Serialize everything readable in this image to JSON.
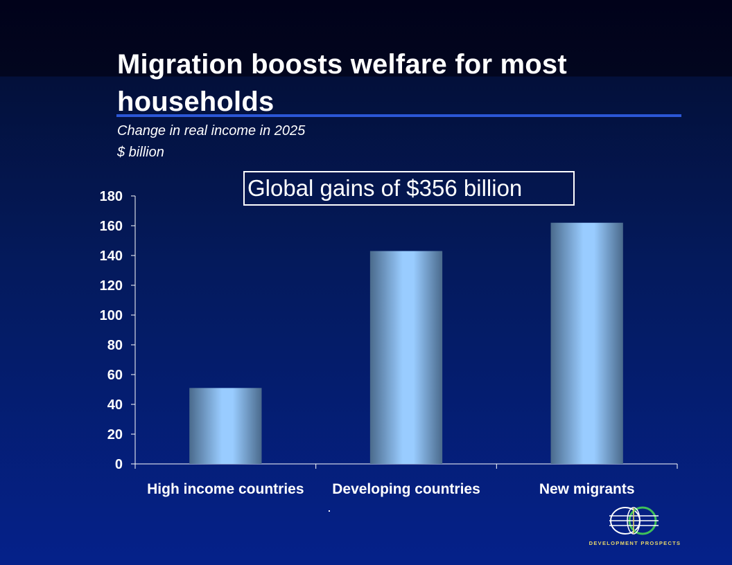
{
  "slide": {
    "title": "Migration boosts welfare for most households",
    "subtitle_line1": "Change in real income in 2025",
    "subtitle_line2": "$ billion",
    "callout": "Global gains of $356 billion"
  },
  "logo": {
    "text": "DEVELOPMENT PROSPECTS",
    "icon": "globe-icon"
  },
  "colors": {
    "background": "#041a5c",
    "title_rule": "#2b56d6",
    "bar_center": "#99ccff",
    "bar_edge": "#4a6a8c",
    "logo_text": "#e8d66a"
  },
  "chart_data": {
    "type": "bar",
    "title": "",
    "xlabel": "",
    "ylabel": "",
    "categories": [
      "High income countries",
      "Developing countries",
      "New migrants"
    ],
    "values": [
      51,
      143,
      162
    ],
    "ylim": [
      0,
      180
    ],
    "yticks": [
      0,
      20,
      40,
      60,
      80,
      100,
      120,
      140,
      160,
      180
    ],
    "grid": false,
    "legend": "none"
  }
}
